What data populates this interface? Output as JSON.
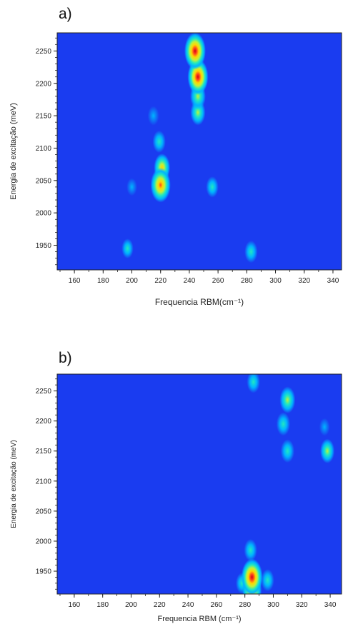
{
  "chart_data": [
    {
      "panel_label": "a)",
      "type": "heatmap",
      "xlabel": "Frequencia RBM(cm⁻¹)",
      "ylabel": "Energia de excitação (meV)",
      "xlim": [
        148,
        346
      ],
      "ylim": [
        1912,
        2278
      ],
      "x_ticks": [
        160,
        180,
        200,
        220,
        240,
        260,
        280,
        300,
        320,
        340
      ],
      "y_ticks": [
        1950,
        2000,
        2050,
        2100,
        2150,
        2200,
        2250
      ],
      "colormap": [
        "#1a3cf0",
        "#00b4ff",
        "#22e8c0",
        "#bff23a",
        "#ffd500",
        "#ff4a1a",
        "#d40018"
      ],
      "background_color": "#1a3cf0",
      "peaks": [
        {
          "x": 244,
          "y": 2250,
          "intensity": 1.0
        },
        {
          "x": 246,
          "y": 2210,
          "intensity": 0.95
        },
        {
          "x": 246,
          "y": 2180,
          "intensity": 0.55
        },
        {
          "x": 246,
          "y": 2155,
          "intensity": 0.5
        },
        {
          "x": 220,
          "y": 2043,
          "intensity": 0.9
        },
        {
          "x": 221,
          "y": 2070,
          "intensity": 0.6
        },
        {
          "x": 219,
          "y": 2110,
          "intensity": 0.35
        },
        {
          "x": 215,
          "y": 2150,
          "intensity": 0.22
        },
        {
          "x": 256,
          "y": 2040,
          "intensity": 0.3
        },
        {
          "x": 200,
          "y": 2040,
          "intensity": 0.15
        },
        {
          "x": 197,
          "y": 1945,
          "intensity": 0.25
        },
        {
          "x": 283,
          "y": 1940,
          "intensity": 0.35
        }
      ]
    },
    {
      "panel_label": "b)",
      "type": "heatmap",
      "xlabel": "Frequencia RBM (cm⁻¹)",
      "ylabel": "Energia de excitação (meV)",
      "xlim": [
        148,
        348
      ],
      "ylim": [
        1912,
        2278
      ],
      "x_ticks": [
        160,
        180,
        200,
        220,
        240,
        260,
        280,
        300,
        320,
        340
      ],
      "y_ticks": [
        1950,
        2000,
        2050,
        2100,
        2150,
        2200,
        2250
      ],
      "colormap": [
        "#1a3cf0",
        "#00b4ff",
        "#22e8c0",
        "#bff23a",
        "#ffd500",
        "#ff4a1a",
        "#d40018"
      ],
      "background_color": "#1a3cf0",
      "peaks": [
        {
          "x": 286,
          "y": 2265,
          "intensity": 0.35
        },
        {
          "x": 310,
          "y": 2235,
          "intensity": 0.55
        },
        {
          "x": 307,
          "y": 2195,
          "intensity": 0.4
        },
        {
          "x": 310,
          "y": 2150,
          "intensity": 0.4
        },
        {
          "x": 338,
          "y": 2150,
          "intensity": 0.45
        },
        {
          "x": 336,
          "y": 2190,
          "intensity": 0.15
        },
        {
          "x": 285,
          "y": 1940,
          "intensity": 1.0
        },
        {
          "x": 285,
          "y": 1918,
          "intensity": 0.85
        },
        {
          "x": 284,
          "y": 1985,
          "intensity": 0.35
        },
        {
          "x": 296,
          "y": 1935,
          "intensity": 0.35
        },
        {
          "x": 278,
          "y": 1930,
          "intensity": 0.3
        }
      ]
    }
  ]
}
